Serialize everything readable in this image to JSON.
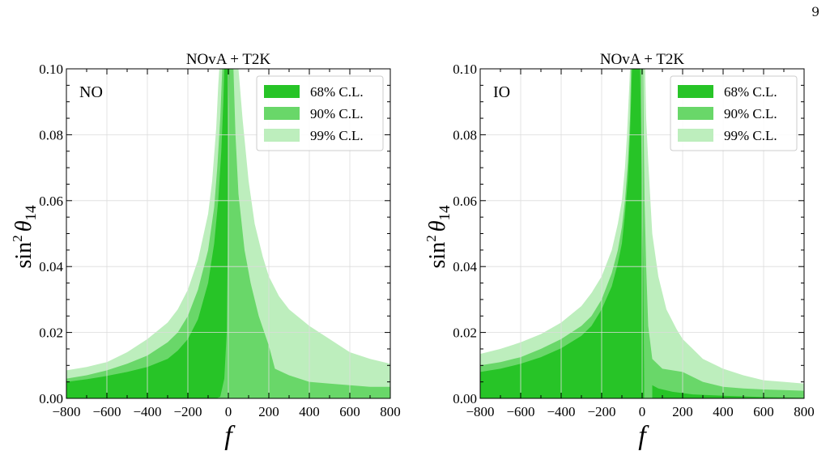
{
  "page_number": "9",
  "colors": {
    "cl68": "#27c427",
    "cl90": "#69d769",
    "cl99": "#bdeebd",
    "grid": "#dcdcdc"
  },
  "chart_data": [
    {
      "type": "area",
      "title": "NOvA + T2K",
      "ordering_label": "NO",
      "xlabel": "f",
      "ylabel_parts": {
        "base": "sin",
        "sup": "2",
        "theta": "θ",
        "sub": "14"
      },
      "xlim": [
        -800,
        800
      ],
      "ylim": [
        0,
        0.1
      ],
      "xticks": [
        -800,
        -600,
        -400,
        -200,
        0,
        200,
        400,
        600,
        800
      ],
      "xtick_labels": [
        "−800",
        "−600",
        "−400",
        "−200",
        "0",
        "200",
        "400",
        "600",
        "800"
      ],
      "yticks": [
        0,
        0.02,
        0.04,
        0.06,
        0.08,
        0.1
      ],
      "ytick_labels": [
        "0.00",
        "0.02",
        "0.04",
        "0.06",
        "0.08",
        "0.10"
      ],
      "grid": true,
      "legend_position": "top-right",
      "legend": [
        "68% C.L.",
        "90% C.L.",
        "99% C.L."
      ],
      "regions": [
        {
          "name": "99% C.L.",
          "boundary": [
            [
              -800,
              0
            ],
            [
              -800,
              0.0085
            ],
            [
              -700,
              0.0095
            ],
            [
              -600,
              0.011
            ],
            [
              -500,
              0.014
            ],
            [
              -400,
              0.018
            ],
            [
              -300,
              0.023
            ],
            [
              -250,
              0.027
            ],
            [
              -200,
              0.033
            ],
            [
              -150,
              0.042
            ],
            [
              -100,
              0.056
            ],
            [
              -80,
              0.066
            ],
            [
              -60,
              0.082
            ],
            [
              -50,
              0.095
            ],
            [
              -45,
              0.1
            ],
            [
              50,
              0.1
            ],
            [
              70,
              0.085
            ],
            [
              100,
              0.066
            ],
            [
              130,
              0.053
            ],
            [
              170,
              0.043
            ],
            [
              200,
              0.037
            ],
            [
              250,
              0.031
            ],
            [
              300,
              0.027
            ],
            [
              400,
              0.022
            ],
            [
              500,
              0.018
            ],
            [
              600,
              0.014
            ],
            [
              700,
              0.012
            ],
            [
              800,
              0.0105
            ],
            [
              800,
              0
            ]
          ]
        },
        {
          "name": "90% C.L.",
          "boundary": [
            [
              -800,
              0
            ],
            [
              -800,
              0.006
            ],
            [
              -700,
              0.007
            ],
            [
              -600,
              0.0085
            ],
            [
              -500,
              0.0105
            ],
            [
              -400,
              0.013
            ],
            [
              -300,
              0.017
            ],
            [
              -250,
              0.02
            ],
            [
              -200,
              0.025
            ],
            [
              -150,
              0.033
            ],
            [
              -100,
              0.045
            ],
            [
              -70,
              0.058
            ],
            [
              -55,
              0.07
            ],
            [
              -40,
              0.085
            ],
            [
              -30,
              0.1
            ],
            [
              25,
              0.1
            ],
            [
              35,
              0.08
            ],
            [
              50,
              0.062
            ],
            [
              80,
              0.045
            ],
            [
              110,
              0.035
            ],
            [
              150,
              0.025
            ],
            [
              200,
              0.016
            ],
            [
              230,
              0.009
            ],
            [
              300,
              0.007
            ],
            [
              400,
              0.005
            ],
            [
              500,
              0.0045
            ],
            [
              600,
              0.004
            ],
            [
              700,
              0.0035
            ],
            [
              800,
              0.0035
            ],
            [
              800,
              0
            ]
          ]
        },
        {
          "name": "68% C.L.",
          "boundary": [
            [
              -800,
              0
            ],
            [
              -800,
              0.005
            ],
            [
              -700,
              0.0058
            ],
            [
              -600,
              0.0068
            ],
            [
              -500,
              0.008
            ],
            [
              -400,
              0.0095
            ],
            [
              -300,
              0.012
            ],
            [
              -250,
              0.0145
            ],
            [
              -200,
              0.018
            ],
            [
              -150,
              0.024
            ],
            [
              -100,
              0.035
            ],
            [
              -70,
              0.047
            ],
            [
              -50,
              0.06
            ],
            [
              -35,
              0.075
            ],
            [
              -25,
              0.09
            ],
            [
              -20,
              0.1
            ],
            [
              5,
              0.1
            ],
            [
              0,
              0.08
            ],
            [
              -2,
              0.06
            ],
            [
              -4,
              0.04
            ],
            [
              -8,
              0.02
            ],
            [
              -20,
              0.006
            ],
            [
              -40,
              0.0005
            ],
            [
              -60,
              0
            ]
          ]
        }
      ]
    },
    {
      "type": "area",
      "title": "NOvA + T2K",
      "ordering_label": "IO",
      "xlabel": "f",
      "ylabel_parts": {
        "base": "sin",
        "sup": "2",
        "theta": "θ",
        "sub": "14"
      },
      "xlim": [
        -800,
        800
      ],
      "ylim": [
        0,
        0.1
      ],
      "xticks": [
        -800,
        -600,
        -400,
        -200,
        0,
        200,
        400,
        600,
        800
      ],
      "xtick_labels": [
        "−800",
        "−600",
        "−400",
        "−200",
        "0",
        "200",
        "400",
        "600",
        "800"
      ],
      "yticks": [
        0,
        0.02,
        0.04,
        0.06,
        0.08,
        0.1
      ],
      "ytick_labels": [
        "0.00",
        "0.02",
        "0.04",
        "0.06",
        "0.08",
        "0.10"
      ],
      "grid": true,
      "legend_position": "top-right",
      "legend": [
        "68% C.L.",
        "90% C.L.",
        "99% C.L."
      ],
      "regions": [
        {
          "name": "99% C.L.",
          "boundary": [
            [
              -800,
              0
            ],
            [
              -800,
              0.0135
            ],
            [
              -700,
              0.015
            ],
            [
              -600,
              0.017
            ],
            [
              -500,
              0.0195
            ],
            [
              -400,
              0.023
            ],
            [
              -300,
              0.028
            ],
            [
              -250,
              0.032
            ],
            [
              -200,
              0.037
            ],
            [
              -150,
              0.045
            ],
            [
              -120,
              0.053
            ],
            [
              -100,
              0.06
            ],
            [
              -85,
              0.07
            ],
            [
              -75,
              0.08
            ],
            [
              -65,
              0.093
            ],
            [
              -60,
              0.1
            ],
            [
              15,
              0.1
            ],
            [
              20,
              0.085
            ],
            [
              30,
              0.072
            ],
            [
              50,
              0.05
            ],
            [
              80,
              0.037
            ],
            [
              120,
              0.027
            ],
            [
              170,
              0.021
            ],
            [
              200,
              0.018
            ],
            [
              250,
              0.015
            ],
            [
              300,
              0.012
            ],
            [
              400,
              0.009
            ],
            [
              500,
              0.007
            ],
            [
              600,
              0.0055
            ],
            [
              700,
              0.005
            ],
            [
              800,
              0.0045
            ],
            [
              800,
              0
            ]
          ]
        },
        {
          "name": "90% C.L.",
          "boundary": [
            [
              -800,
              0
            ],
            [
              -800,
              0.01
            ],
            [
              -700,
              0.011
            ],
            [
              -600,
              0.0125
            ],
            [
              -500,
              0.015
            ],
            [
              -400,
              0.018
            ],
            [
              -300,
              0.022
            ],
            [
              -250,
              0.025
            ],
            [
              -200,
              0.03
            ],
            [
              -150,
              0.038
            ],
            [
              -120,
              0.045
            ],
            [
              -100,
              0.052
            ],
            [
              -85,
              0.06
            ],
            [
              -70,
              0.072
            ],
            [
              -60,
              0.085
            ],
            [
              -55,
              0.1
            ],
            [
              5,
              0.1
            ],
            [
              8,
              0.08
            ],
            [
              12,
              0.06
            ],
            [
              20,
              0.04
            ],
            [
              30,
              0.022
            ],
            [
              50,
              0.012
            ],
            [
              100,
              0.009
            ],
            [
              200,
              0.008
            ],
            [
              250,
              0.0065
            ],
            [
              300,
              0.005
            ],
            [
              400,
              0.0035
            ],
            [
              500,
              0.003
            ],
            [
              600,
              0.0027
            ],
            [
              700,
              0.0025
            ],
            [
              800,
              0.0023
            ],
            [
              800,
              0
            ]
          ]
        },
        {
          "name": "68% C.L.",
          "boundary": [
            [
              -800,
              0
            ],
            [
              -800,
              0.008
            ],
            [
              -700,
              0.009
            ],
            [
              -600,
              0.0105
            ],
            [
              -500,
              0.0125
            ],
            [
              -400,
              0.0152
            ],
            [
              -300,
              0.019
            ],
            [
              -250,
              0.022
            ],
            [
              -200,
              0.027
            ],
            [
              -150,
              0.034
            ],
            [
              -120,
              0.041
            ],
            [
              -100,
              0.047
            ],
            [
              -85,
              0.056
            ],
            [
              -70,
              0.067
            ],
            [
              -60,
              0.08
            ],
            [
              -50,
              0.1
            ],
            [
              -10,
              0.1
            ],
            [
              -5,
              0.08
            ],
            [
              0,
              0.06
            ],
            [
              5,
              0.04
            ],
            [
              8,
              0.02
            ],
            [
              10,
              0.005
            ],
            [
              10,
              0
            ]
          ]
        },
        {
          "name": "68% C.L.",
          "boundary": [
            [
              50,
              0
            ],
            [
              50,
              0.004
            ],
            [
              80,
              0.003
            ],
            [
              150,
              0.002
            ],
            [
              250,
              0.0012
            ],
            [
              400,
              0.0008
            ],
            [
              600,
              0.0004
            ],
            [
              800,
              0.0002
            ],
            [
              800,
              0
            ]
          ]
        }
      ]
    }
  ]
}
